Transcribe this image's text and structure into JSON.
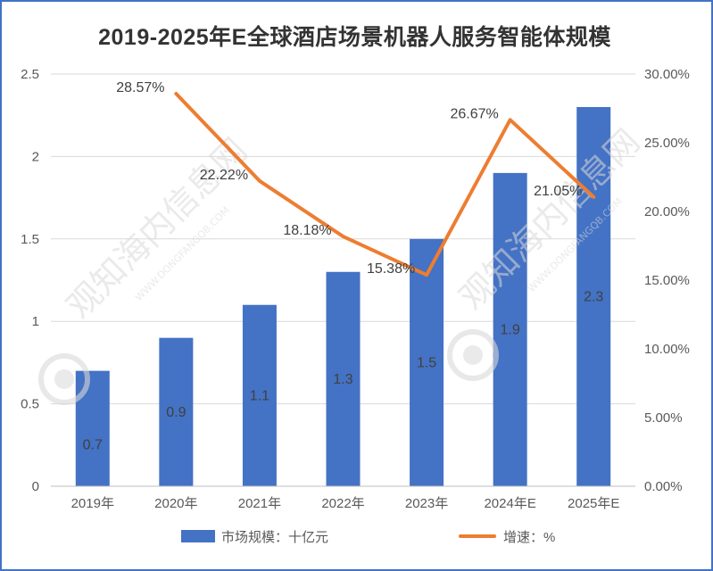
{
  "chart_data": {
    "type": "bar",
    "title": "2019-2025年E全球酒店场景机器人服务智能体规模",
    "categories": [
      "2019年",
      "2020年",
      "2021年",
      "2022年",
      "2023年",
      "2024年E",
      "2025年E"
    ],
    "series": [
      {
        "name": "市场规模：十亿元",
        "type": "bar",
        "axis": "left",
        "color": "#4472c4",
        "values": [
          0.7,
          0.9,
          1.1,
          1.3,
          1.5,
          1.9,
          2.3
        ],
        "labels": [
          "0.7",
          "0.9",
          "1.1",
          "1.3",
          "1.5",
          "1.9",
          "2.3"
        ]
      },
      {
        "name": "增速：%",
        "type": "line",
        "axis": "right",
        "color": "#ed7d31",
        "values": [
          null,
          28.57,
          22.22,
          18.18,
          15.38,
          26.67,
          21.05
        ],
        "labels": [
          "",
          "28.57%",
          "22.22%",
          "18.18%",
          "15.38%",
          "26.67%",
          "21.05%"
        ]
      }
    ],
    "left_axis": {
      "ylim": [
        0,
        2.5
      ],
      "ticks": [
        "0",
        "0.5",
        "1",
        "1.5",
        "2",
        "2.5"
      ]
    },
    "right_axis": {
      "ylim": [
        0,
        30
      ],
      "ticks": [
        "0.00%",
        "5.00%",
        "10.00%",
        "15.00%",
        "20.00%",
        "25.00%",
        "30.00%"
      ]
    },
    "grid": true,
    "legend_position": "bottom"
  },
  "watermark": {
    "text": "观知海内信息网",
    "subtext": "WWW.DONGFANGQB.COM"
  }
}
